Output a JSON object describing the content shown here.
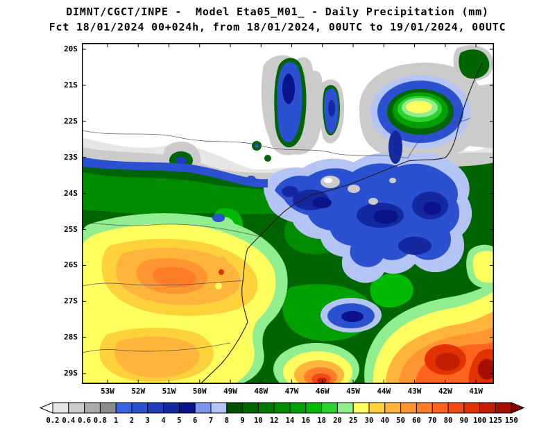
{
  "title": {
    "line1": "DIMNT/CGCT/INPE -  Model Eta05_M01_ - Daily Precipitation (mm)",
    "line2": "Fct 18/01/2024 00+024h, from 18/01/2024, 00UTC to 19/01/2024, 00UTC"
  },
  "map": {
    "lat_labels": [
      "20S",
      "21S",
      "22S",
      "23S",
      "24S",
      "25S",
      "26S",
      "27S",
      "28S",
      "29S"
    ],
    "lon_labels": [
      "53W",
      "52W",
      "51W",
      "50W",
      "49W",
      "48W",
      "47W",
      "46W",
      "45W",
      "44W",
      "43W",
      "42W",
      "41W"
    ]
  },
  "legend": {
    "tick_labels": [
      "0.2",
      "0.4",
      "0.6",
      "0.8",
      "1",
      "2",
      "3",
      "4",
      "5",
      "6",
      "7",
      "8",
      "9",
      "10",
      "12",
      "14",
      "16",
      "18",
      "20",
      "25",
      "30",
      "40",
      "50",
      "60",
      "70",
      "80",
      "90",
      "100",
      "125",
      "150"
    ],
    "colors": [
      "#ffffff",
      "#e6e6e6",
      "#cbcbcb",
      "#ababab",
      "#8c8c8c",
      "#3a64e0",
      "#2b50d0",
      "#1f3cba",
      "#1428a0",
      "#0a1488",
      "#7e96ea",
      "#b4c4f4",
      "#005000",
      "#006400",
      "#007800",
      "#008c00",
      "#00a000",
      "#00b900",
      "#2ed12e",
      "#90ee90",
      "#ffff60",
      "#ffd23c",
      "#ffb43c",
      "#ff9632",
      "#ff7d28",
      "#ff641e",
      "#f04b14",
      "#e13200",
      "#c31e00",
      "#a50f00",
      "#870000"
    ]
  },
  "chart_data": {
    "type": "heatmap",
    "title": "DIMNT/CGCT/INPE -  Model Eta05_M01_ - Daily Precipitation (mm)",
    "subtitle": "Fct 18/01/2024 00+024h, from 18/01/2024, 00UTC to 19/01/2024, 00UTC",
    "units": "mm",
    "x_ticks": [
      "53W",
      "52W",
      "51W",
      "50W",
      "49W",
      "48W",
      "47W",
      "46W",
      "45W",
      "44W",
      "43W",
      "42W",
      "41W"
    ],
    "y_ticks": [
      "20S",
      "21S",
      "22S",
      "23S",
      "24S",
      "25S",
      "26S",
      "27S",
      "28S",
      "29S"
    ],
    "colorbar_boundaries_mm": [
      0.2,
      0.4,
      0.6,
      0.8,
      1,
      2,
      3,
      4,
      5,
      6,
      7,
      8,
      9,
      10,
      12,
      14,
      16,
      18,
      20,
      25,
      30,
      40,
      50,
      60,
      70,
      80,
      90,
      100,
      125,
      150
    ],
    "legend_position": "bottom"
  }
}
